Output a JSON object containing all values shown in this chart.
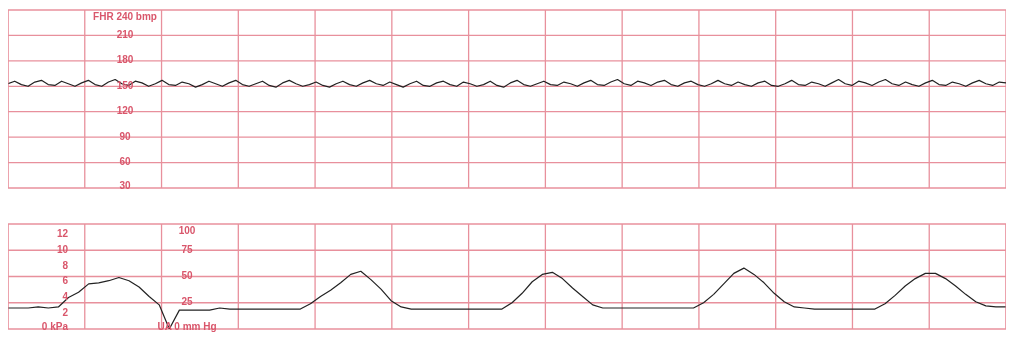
{
  "chart_data": [
    {
      "type": "line",
      "categories": [
        null,
        null,
        null,
        null,
        null,
        null,
        null,
        null,
        null,
        null,
        null,
        null,
        null,
        null,
        null,
        null,
        null,
        null,
        null,
        null,
        null,
        null,
        null,
        null,
        null,
        null,
        null,
        null,
        null,
        null,
        null,
        null,
        null,
        null,
        null,
        null,
        null,
        null,
        null,
        null,
        null,
        null,
        null,
        null,
        null,
        null,
        null,
        null,
        null,
        null,
        null,
        null,
        null,
        null,
        null,
        null,
        null,
        null,
        null,
        null,
        null,
        null,
        null,
        null,
        null,
        null,
        null,
        null,
        null,
        null,
        null,
        null,
        null,
        null,
        null,
        null,
        null,
        null,
        null,
        null,
        null,
        null,
        null,
        null,
        null,
        null,
        null,
        null,
        null,
        null,
        null,
        null,
        null,
        null,
        null,
        null,
        null,
        null,
        null,
        null,
        null,
        null,
        null,
        null,
        null,
        null,
        null,
        null,
        null,
        null,
        null,
        null,
        null,
        null,
        null,
        null,
        null,
        null,
        null,
        null,
        null,
        null,
        null,
        null,
        null,
        null,
        null,
        null,
        null,
        null,
        null,
        null,
        null,
        null,
        null,
        null,
        null,
        null,
        null,
        null,
        null,
        null,
        null,
        null,
        null,
        null,
        null,
        null,
        null,
        null
      ],
      "series": [
        {
          "color": "#222222",
          "values": [
            153,
            156,
            152,
            150,
            155,
            157,
            152,
            151,
            156,
            153,
            150,
            154,
            157,
            152,
            150,
            155,
            158,
            153,
            151,
            156,
            154,
            150,
            153,
            157,
            152,
            151,
            155,
            153,
            149,
            152,
            156,
            153,
            150,
            154,
            157,
            152,
            150,
            153,
            156,
            151,
            149,
            154,
            157,
            153,
            150,
            152,
            155,
            151,
            149,
            153,
            156,
            152,
            150,
            154,
            157,
            153,
            151,
            155,
            152,
            149,
            153,
            156,
            151,
            150,
            154,
            156,
            152,
            150,
            155,
            153,
            150,
            152,
            156,
            151,
            149,
            154,
            157,
            152,
            150,
            153,
            156,
            152,
            151,
            155,
            153,
            150,
            154,
            157,
            152,
            151,
            155,
            158,
            153,
            151,
            156,
            154,
            151,
            155,
            157,
            152,
            150,
            154,
            156,
            152,
            150,
            153,
            157,
            153,
            151,
            155,
            152,
            150,
            154,
            156,
            151,
            150,
            153,
            157,
            152,
            151,
            155,
            153,
            150,
            154,
            158,
            153,
            151,
            156,
            154,
            151,
            155,
            158,
            153,
            151,
            155,
            152,
            150,
            154,
            157,
            152,
            151,
            155,
            153,
            150,
            154,
            157,
            153,
            151,
            155,
            154
          ]
        }
      ],
      "ylim": [
        30,
        240
      ],
      "yticks": [
        {
          "value": 240,
          "label": "FHR  240  bmp"
        },
        210,
        180,
        150,
        120,
        90,
        60,
        30
      ],
      "grid": true,
      "tick_labels": "y",
      "marker": "none",
      "line_style": "solid"
    },
    {
      "type": "line",
      "categories": [
        null,
        null,
        null,
        null,
        null,
        null,
        null,
        null,
        null,
        null,
        null,
        null,
        null,
        null,
        null,
        null,
        null,
        null,
        null,
        null,
        null,
        null,
        null,
        null,
        null,
        null,
        null,
        null,
        null,
        null,
        null,
        null,
        null,
        null,
        null,
        null,
        null,
        null,
        null,
        null,
        null,
        null,
        null,
        null,
        null,
        null,
        null,
        null,
        null,
        null,
        null,
        null,
        null,
        null,
        null,
        null,
        null,
        null,
        null,
        null,
        null,
        null,
        null,
        null,
        null,
        null,
        null,
        null,
        null,
        null,
        null,
        null,
        null,
        null,
        null,
        null,
        null,
        null,
        null,
        null,
        null,
        null,
        null,
        null,
        null,
        null,
        null,
        null,
        null,
        null,
        null,
        null,
        null,
        null,
        null,
        null,
        null,
        null,
        null,
        null
      ],
      "series": [
        {
          "color": "#222222",
          "values": [
            20,
            20,
            20,
            21,
            20,
            21,
            30,
            35,
            43,
            44,
            46,
            49,
            46,
            40,
            31,
            23,
            0,
            18,
            18,
            18,
            18,
            20,
            19,
            19,
            19,
            19,
            19,
            19,
            19,
            19,
            24,
            31,
            37,
            44,
            52,
            55,
            47,
            38,
            27,
            21,
            19,
            19,
            19,
            19,
            19,
            19,
            19,
            19,
            19,
            19,
            25,
            34,
            45,
            52,
            54,
            48,
            39,
            31,
            23,
            20,
            20,
            20,
            20,
            20,
            20,
            20,
            20,
            20,
            20,
            25,
            33,
            43,
            53,
            58,
            52,
            44,
            34,
            26,
            21,
            20,
            19,
            19,
            19,
            19,
            19,
            19,
            19,
            24,
            32,
            41,
            48,
            53,
            53,
            48,
            41,
            33,
            26,
            22,
            21,
            21
          ]
        }
      ],
      "ylim": [
        0,
        100
      ],
      "yticks": [
        {
          "value": 0,
          "label": "UA  0  mm Hg"
        },
        25,
        50,
        75,
        100
      ],
      "y2lim": [
        0,
        13.33
      ],
      "y2ticks": [
        {
          "value": 0,
          "label": "0  kPa"
        },
        2,
        4,
        6,
        8,
        10,
        12
      ],
      "grid": true,
      "tick_labels": "y",
      "marker": "none",
      "line_style": "solid"
    }
  ]
}
